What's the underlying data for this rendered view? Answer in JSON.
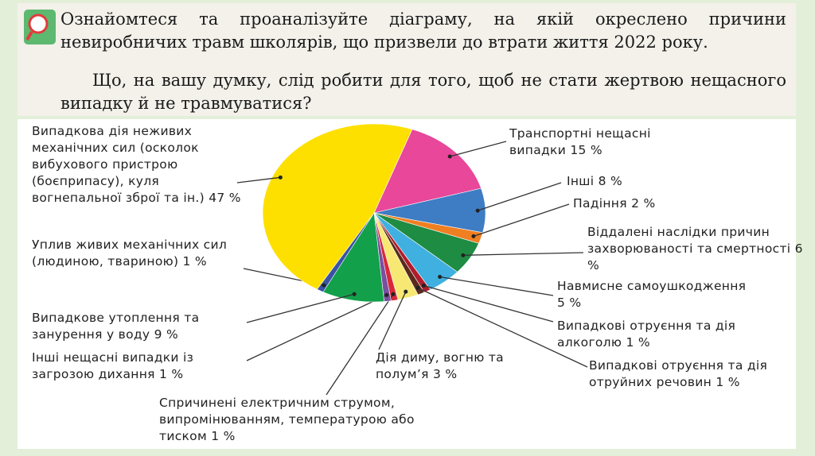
{
  "chart_data": {
    "type": "pie",
    "title": "Ознайомтеся та проаналізуйте діаграму, на якій окреслено причини невиробничих травм школярів, що призвели до втрати життя 2022 року.",
    "subtitle": "Що, на вашу думку, слід робити для того, щоб не стати жертвою нещасного випадку й не травмуватися?",
    "categories": [
      "Транспортні нещасні випадки",
      "Інші",
      "Падіння",
      "Віддалені наслідки причин захворюваності та смертності",
      "Навмисне самоушкодження",
      "Випадкові отруєння та дія алкоголю",
      "Випадкові отруєння та дія отруйних речовин",
      "Дія диму, вогню та полум’я",
      "Спричинені електричним струмом, випромінюванням, температурою або тиском",
      "Інші нещасні випадки із загрозою дихання",
      "Випадкове утоплення та занурення у воду",
      "Уплив живих механічних сил (людиною, твариною)",
      "Випадкова дія неживих механічних сил (осколок вибухового пристрою (боєприпасу), куля вогнепальної зброї та ін.)"
    ],
    "values": [
      15,
      8,
      2,
      6,
      5,
      1,
      1,
      3,
      1,
      1,
      9,
      1,
      47
    ],
    "value_labels": [
      "15 %",
      "8 %",
      "2 %",
      "6 %",
      "5 %",
      "1 %",
      "1 %",
      "3 %",
      "1 %",
      "1 %",
      "9 %",
      "1 %",
      "47 %"
    ],
    "colors": [
      "#e8479a",
      "#3e7cc4",
      "#f07f22",
      "#1e8c43",
      "#3fb0e0",
      "#b01c2c",
      "#5a2a1c",
      "#f7e874",
      "#d8283a",
      "#7a4fa0",
      "#12a04a",
      "#3953a4",
      "#fde000"
    ]
  }
}
